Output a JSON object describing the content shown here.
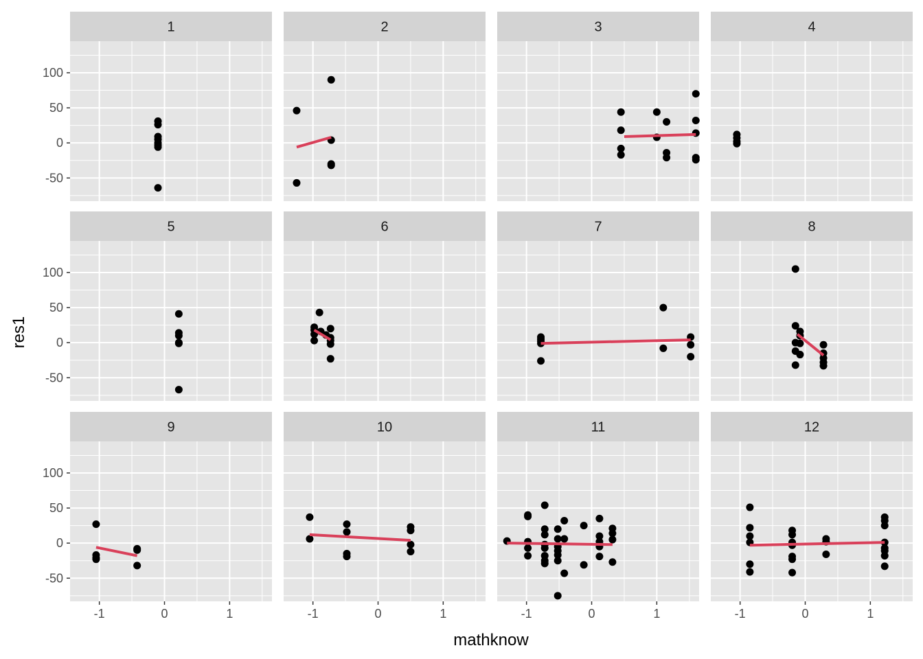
{
  "chart_data": {
    "type": "scatter",
    "layout": "faceted-3x4",
    "xlabel": "mathknow",
    "ylabel": "res1",
    "xlim": [
      -1.45,
      1.65
    ],
    "ylim": [
      -83,
      145
    ],
    "x_ticks": [
      -1,
      0,
      1
    ],
    "x_tick_labels": [
      "-1",
      "0",
      "1"
    ],
    "y_ticks": [
      -50,
      0,
      50,
      100
    ],
    "y_tick_labels": [
      "-50",
      "0",
      "50",
      "100"
    ],
    "grid": true,
    "colors": {
      "panel_background": "#e5e5e5",
      "strip_background": "#d3d3d3",
      "grid": "#ffffff",
      "point": "#000000",
      "fit_line": "#d9405a",
      "page_background": "#ffffff"
    },
    "panels": [
      {
        "label": "1",
        "points": [
          [
            -0.1,
            31
          ],
          [
            -0.1,
            26
          ],
          [
            -0.1,
            9
          ],
          [
            -0.1,
            5
          ],
          [
            -0.1,
            0
          ],
          [
            -0.1,
            -3
          ],
          [
            -0.1,
            -6
          ],
          [
            -0.1,
            -64
          ]
        ],
        "fit": null
      },
      {
        "label": "2",
        "points": [
          [
            -1.25,
            46
          ],
          [
            -1.25,
            -57
          ],
          [
            -0.72,
            90
          ],
          [
            -0.72,
            4
          ],
          [
            -0.72,
            -30
          ],
          [
            -0.72,
            -32
          ]
        ],
        "fit": [
          [
            -1.25,
            -6
          ],
          [
            -0.72,
            8
          ]
        ]
      },
      {
        "label": "3",
        "points": [
          [
            0.45,
            44
          ],
          [
            0.45,
            18
          ],
          [
            0.45,
            -8
          ],
          [
            0.45,
            -17
          ],
          [
            1.0,
            44
          ],
          [
            1.0,
            8
          ],
          [
            1.15,
            30
          ],
          [
            1.15,
            -14
          ],
          [
            1.15,
            -21
          ],
          [
            1.6,
            70
          ],
          [
            1.6,
            32
          ],
          [
            1.6,
            14
          ],
          [
            1.6,
            -21
          ],
          [
            1.6,
            -24
          ]
        ],
        "fit": [
          [
            0.5,
            9
          ],
          [
            1.6,
            12
          ]
        ]
      },
      {
        "label": "4",
        "points": [
          [
            -1.05,
            12
          ],
          [
            -1.05,
            7
          ],
          [
            -1.05,
            2
          ],
          [
            -1.05,
            -1
          ]
        ],
        "fit": null
      },
      {
        "label": "5",
        "points": [
          [
            0.22,
            41
          ],
          [
            0.22,
            14
          ],
          [
            0.22,
            10
          ],
          [
            0.22,
            0
          ],
          [
            0.22,
            -1
          ],
          [
            0.22,
            -67
          ]
        ],
        "fit": null
      },
      {
        "label": "6",
        "points": [
          [
            -0.98,
            22
          ],
          [
            -0.98,
            18
          ],
          [
            -0.98,
            12
          ],
          [
            -0.98,
            3
          ],
          [
            -0.9,
            43
          ],
          [
            -0.88,
            16
          ],
          [
            -0.8,
            11
          ],
          [
            -0.73,
            20
          ],
          [
            -0.73,
            7
          ],
          [
            -0.73,
            3
          ],
          [
            -0.73,
            -2
          ],
          [
            -0.73,
            -23
          ]
        ],
        "fit": [
          [
            -0.98,
            18
          ],
          [
            -0.73,
            4
          ]
        ]
      },
      {
        "label": "7",
        "points": [
          [
            -0.78,
            8
          ],
          [
            -0.78,
            5
          ],
          [
            -0.78,
            2
          ],
          [
            -0.78,
            -1
          ],
          [
            -0.78,
            -26
          ],
          [
            1.1,
            50
          ],
          [
            1.1,
            -8
          ],
          [
            1.52,
            8
          ],
          [
            1.52,
            -3
          ],
          [
            1.52,
            -20
          ]
        ],
        "fit": [
          [
            -0.78,
            -1
          ],
          [
            1.52,
            4
          ]
        ]
      },
      {
        "label": "8",
        "points": [
          [
            -0.15,
            105
          ],
          [
            -0.15,
            24
          ],
          [
            -0.15,
            0
          ],
          [
            -0.15,
            -12
          ],
          [
            -0.15,
            -32
          ],
          [
            -0.08,
            16
          ],
          [
            -0.08,
            10
          ],
          [
            -0.08,
            -1
          ],
          [
            -0.08,
            -17
          ],
          [
            0.28,
            -3
          ],
          [
            0.28,
            -15
          ],
          [
            0.28,
            -22
          ],
          [
            0.28,
            -28
          ],
          [
            0.28,
            -33
          ]
        ],
        "fit": [
          [
            -0.12,
            12
          ],
          [
            0.28,
            -18
          ]
        ]
      },
      {
        "label": "9",
        "points": [
          [
            -1.05,
            27
          ],
          [
            -1.05,
            -17
          ],
          [
            -1.05,
            -21
          ],
          [
            -1.05,
            -23
          ],
          [
            -0.42,
            -8
          ],
          [
            -0.42,
            -10
          ],
          [
            -0.42,
            -32
          ]
        ],
        "fit": [
          [
            -1.05,
            -6
          ],
          [
            -0.42,
            -18
          ]
        ]
      },
      {
        "label": "10",
        "points": [
          [
            -1.05,
            37
          ],
          [
            -1.05,
            6
          ],
          [
            -0.48,
            27
          ],
          [
            -0.48,
            16
          ],
          [
            -0.48,
            -15
          ],
          [
            -0.48,
            -19
          ],
          [
            0.5,
            23
          ],
          [
            0.5,
            18
          ],
          [
            0.5,
            -2
          ],
          [
            0.5,
            -12
          ]
        ],
        "fit": [
          [
            -1.05,
            12
          ],
          [
            0.5,
            4
          ]
        ]
      },
      {
        "label": "11",
        "points": [
          [
            -1.3,
            3
          ],
          [
            -0.98,
            40
          ],
          [
            -0.98,
            38
          ],
          [
            -0.98,
            2
          ],
          [
            -0.98,
            -7
          ],
          [
            -0.98,
            -18
          ],
          [
            -0.72,
            54
          ],
          [
            -0.72,
            20
          ],
          [
            -0.72,
            12
          ],
          [
            -0.72,
            -2
          ],
          [
            -0.72,
            -7
          ],
          [
            -0.72,
            -18
          ],
          [
            -0.72,
            -25
          ],
          [
            -0.72,
            -29
          ],
          [
            -0.52,
            20
          ],
          [
            -0.52,
            6
          ],
          [
            -0.52,
            -5
          ],
          [
            -0.52,
            -11
          ],
          [
            -0.52,
            -17
          ],
          [
            -0.52,
            -25
          ],
          [
            -0.52,
            -75
          ],
          [
            -0.42,
            32
          ],
          [
            -0.42,
            6
          ],
          [
            -0.42,
            -43
          ],
          [
            -0.12,
            25
          ],
          [
            -0.12,
            -31
          ],
          [
            0.12,
            35
          ],
          [
            0.12,
            10
          ],
          [
            0.12,
            2
          ],
          [
            0.12,
            -5
          ],
          [
            0.12,
            -19
          ],
          [
            0.32,
            21
          ],
          [
            0.32,
            14
          ],
          [
            0.32,
            5
          ],
          [
            0.32,
            -27
          ]
        ],
        "fit": [
          [
            -1.3,
            0
          ],
          [
            0.32,
            -2
          ]
        ]
      },
      {
        "label": "12",
        "points": [
          [
            -0.85,
            51
          ],
          [
            -0.85,
            22
          ],
          [
            -0.85,
            10
          ],
          [
            -0.85,
            1
          ],
          [
            -0.85,
            -30
          ],
          [
            -0.85,
            -41
          ],
          [
            -0.2,
            18
          ],
          [
            -0.2,
            12
          ],
          [
            -0.2,
            1
          ],
          [
            -0.2,
            -3
          ],
          [
            -0.2,
            -19
          ],
          [
            -0.2,
            -23
          ],
          [
            -0.2,
            -42
          ],
          [
            0.32,
            6
          ],
          [
            0.32,
            2
          ],
          [
            0.32,
            -16
          ],
          [
            1.22,
            37
          ],
          [
            1.22,
            32
          ],
          [
            1.22,
            25
          ],
          [
            1.22,
            1
          ],
          [
            1.22,
            -7
          ],
          [
            1.22,
            -11
          ],
          [
            1.22,
            -18
          ],
          [
            1.22,
            -33
          ]
        ],
        "fit": [
          [
            -0.85,
            -3
          ],
          [
            1.22,
            1
          ]
        ]
      }
    ]
  }
}
